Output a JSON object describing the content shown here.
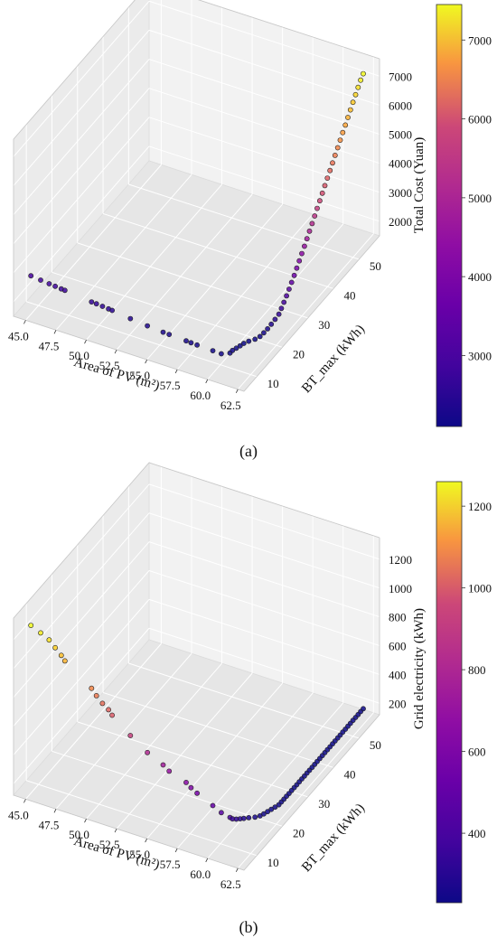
{
  "chart_data": [
    {
      "type": "scatter3d",
      "caption": "(a)",
      "xlabel": "Area of PV (m²)",
      "ylabel": "BT_max (kWh)",
      "zlabel": "Total Cost (Yuan)",
      "x_ticks": [
        "45.0",
        "47.5",
        "50.0",
        "52.5",
        "55.0",
        "57.5",
        "60.0",
        "62.5"
      ],
      "y_ticks": [
        "10",
        "20",
        "30",
        "40",
        "50"
      ],
      "z_ticks": [
        "2000",
        "3000",
        "4000",
        "5000",
        "6000",
        "7000"
      ],
      "xlim": [
        44,
        63
      ],
      "ylim": [
        5,
        58
      ],
      "zlim": [
        1500,
        7600
      ],
      "colormap": "plasma",
      "colorbar_ticks": [
        "3000",
        "4000",
        "5000",
        "6000",
        "7000"
      ],
      "colorbar_range": [
        2100,
        7450
      ],
      "grid": true,
      "points": [
        {
          "x": 44.8,
          "y": 8,
          "z": 2700
        },
        {
          "x": 45.6,
          "y": 8,
          "z": 2660
        },
        {
          "x": 46.3,
          "y": 8,
          "z": 2630
        },
        {
          "x": 46.8,
          "y": 8,
          "z": 2610
        },
        {
          "x": 47.3,
          "y": 8,
          "z": 2590
        },
        {
          "x": 47.6,
          "y": 8,
          "z": 2580
        },
        {
          "x": 49.8,
          "y": 8,
          "z": 2480
        },
        {
          "x": 50.2,
          "y": 8,
          "z": 2470
        },
        {
          "x": 50.7,
          "y": 8,
          "z": 2450
        },
        {
          "x": 51.2,
          "y": 8,
          "z": 2430
        },
        {
          "x": 51.5,
          "y": 8,
          "z": 2420
        },
        {
          "x": 53.0,
          "y": 8,
          "z": 2340
        },
        {
          "x": 54.4,
          "y": 8,
          "z": 2280
        },
        {
          "x": 55.7,
          "y": 8,
          "z": 2240
        },
        {
          "x": 56.2,
          "y": 8,
          "z": 2230
        },
        {
          "x": 57.6,
          "y": 8,
          "z": 2200
        },
        {
          "x": 58.0,
          "y": 8,
          "z": 2190
        },
        {
          "x": 58.5,
          "y": 8,
          "z": 2180
        },
        {
          "x": 59.8,
          "y": 8,
          "z": 2160
        },
        {
          "x": 60.5,
          "y": 8,
          "z": 2150
        },
        {
          "x": 61.0,
          "y": 9,
          "z": 2140
        },
        {
          "x": 61.0,
          "y": 10,
          "z": 2130
        },
        {
          "x": 61.1,
          "y": 11,
          "z": 2120
        },
        {
          "x": 61.2,
          "y": 12,
          "z": 2115
        },
        {
          "x": 61.3,
          "y": 13,
          "z": 2110
        },
        {
          "x": 61.5,
          "y": 14,
          "z": 2110
        },
        {
          "x": 61.8,
          "y": 15,
          "z": 2120
        },
        {
          "x": 62.0,
          "y": 16,
          "z": 2140
        },
        {
          "x": 62.1,
          "y": 17,
          "z": 2180
        },
        {
          "x": 62.2,
          "y": 18,
          "z": 2230
        },
        {
          "x": 62.3,
          "y": 19,
          "z": 2300
        },
        {
          "x": 62.4,
          "y": 20,
          "z": 2380
        },
        {
          "x": 62.5,
          "y": 21,
          "z": 2470
        },
        {
          "x": 62.5,
          "y": 22,
          "z": 2570
        },
        {
          "x": 62.5,
          "y": 23,
          "z": 2680
        },
        {
          "x": 62.5,
          "y": 24,
          "z": 2800
        },
        {
          "x": 62.5,
          "y": 25,
          "z": 2930
        },
        {
          "x": 62.5,
          "y": 26,
          "z": 3060
        },
        {
          "x": 62.5,
          "y": 27,
          "z": 3200
        },
        {
          "x": 62.5,
          "y": 28,
          "z": 3350
        },
        {
          "x": 62.5,
          "y": 29,
          "z": 3500
        },
        {
          "x": 62.5,
          "y": 30,
          "z": 3650
        },
        {
          "x": 62.5,
          "y": 31,
          "z": 3800
        },
        {
          "x": 62.5,
          "y": 32,
          "z": 3960
        },
        {
          "x": 62.5,
          "y": 33,
          "z": 4120
        },
        {
          "x": 62.5,
          "y": 34,
          "z": 4280
        },
        {
          "x": 62.5,
          "y": 35,
          "z": 4440
        },
        {
          "x": 62.5,
          "y": 36,
          "z": 4600
        },
        {
          "x": 62.5,
          "y": 37,
          "z": 4760
        },
        {
          "x": 62.5,
          "y": 38,
          "z": 4920
        },
        {
          "x": 62.5,
          "y": 39,
          "z": 5080
        },
        {
          "x": 62.5,
          "y": 40,
          "z": 5240
        },
        {
          "x": 62.5,
          "y": 41,
          "z": 5400
        },
        {
          "x": 62.5,
          "y": 42,
          "z": 5560
        },
        {
          "x": 62.5,
          "y": 43,
          "z": 5720
        },
        {
          "x": 62.5,
          "y": 44,
          "z": 5880
        },
        {
          "x": 62.5,
          "y": 45,
          "z": 6040
        },
        {
          "x": 62.5,
          "y": 46,
          "z": 6200
        },
        {
          "x": 62.5,
          "y": 47,
          "z": 6360
        },
        {
          "x": 62.5,
          "y": 48,
          "z": 6520
        },
        {
          "x": 62.5,
          "y": 49,
          "z": 6680
        },
        {
          "x": 62.5,
          "y": 50,
          "z": 6840
        },
        {
          "x": 62.5,
          "y": 51,
          "z": 7000
        },
        {
          "x": 62.5,
          "y": 52,
          "z": 7150
        },
        {
          "x": 62.5,
          "y": 53,
          "z": 7300
        },
        {
          "x": 62.5,
          "y": 54,
          "z": 7420
        }
      ]
    },
    {
      "type": "scatter3d",
      "caption": "(b)",
      "xlabel": "Area of PV (m²)",
      "ylabel": "BT_max (kWh)",
      "zlabel": "Grid electricity (kWh)",
      "x_ticks": [
        "45.0",
        "47.5",
        "50.0",
        "52.5",
        "55.0",
        "57.5",
        "60.0",
        "62.5"
      ],
      "y_ticks": [
        "10",
        "20",
        "30",
        "40",
        "50"
      ],
      "z_ticks": [
        "200",
        "400",
        "600",
        "800",
        "1000",
        "1200"
      ],
      "xlim": [
        44,
        63
      ],
      "ylim": [
        5,
        58
      ],
      "zlim": [
        120,
        1350
      ],
      "colormap": "plasma",
      "colorbar_ticks": [
        "400",
        "600",
        "800",
        "1000",
        "1200"
      ],
      "colorbar_range": [
        230,
        1260
      ],
      "grid": true,
      "points": [
        {
          "x": 44.8,
          "y": 8,
          "z": 1260
        },
        {
          "x": 45.6,
          "y": 8,
          "z": 1230
        },
        {
          "x": 46.3,
          "y": 8,
          "z": 1200
        },
        {
          "x": 46.8,
          "y": 8,
          "z": 1160
        },
        {
          "x": 47.3,
          "y": 8,
          "z": 1120
        },
        {
          "x": 47.6,
          "y": 8,
          "z": 1090
        },
        {
          "x": 49.8,
          "y": 8,
          "z": 960
        },
        {
          "x": 50.2,
          "y": 8,
          "z": 920
        },
        {
          "x": 50.7,
          "y": 8,
          "z": 880
        },
        {
          "x": 51.2,
          "y": 8,
          "z": 850
        },
        {
          "x": 51.5,
          "y": 8,
          "z": 820
        },
        {
          "x": 53.0,
          "y": 8,
          "z": 720
        },
        {
          "x": 54.4,
          "y": 8,
          "z": 640
        },
        {
          "x": 55.7,
          "y": 8,
          "z": 590
        },
        {
          "x": 56.2,
          "y": 8,
          "z": 560
        },
        {
          "x": 57.6,
          "y": 8,
          "z": 520
        },
        {
          "x": 58.0,
          "y": 8,
          "z": 495
        },
        {
          "x": 58.5,
          "y": 8,
          "z": 470
        },
        {
          "x": 59.8,
          "y": 8,
          "z": 420
        },
        {
          "x": 60.5,
          "y": 8,
          "z": 390
        },
        {
          "x": 61.0,
          "y": 9,
          "z": 350
        },
        {
          "x": 61.0,
          "y": 10,
          "z": 320
        },
        {
          "x": 61.1,
          "y": 11,
          "z": 300
        },
        {
          "x": 61.2,
          "y": 12,
          "z": 285
        },
        {
          "x": 61.3,
          "y": 13,
          "z": 270
        },
        {
          "x": 61.5,
          "y": 14,
          "z": 260
        },
        {
          "x": 61.8,
          "y": 15,
          "z": 252
        },
        {
          "x": 62.0,
          "y": 16,
          "z": 246
        },
        {
          "x": 62.1,
          "y": 17,
          "z": 242
        },
        {
          "x": 62.2,
          "y": 18,
          "z": 240
        },
        {
          "x": 62.3,
          "y": 19,
          "z": 238
        },
        {
          "x": 62.4,
          "y": 20,
          "z": 236
        },
        {
          "x": 62.5,
          "y": 21,
          "z": 235
        },
        {
          "x": 62.5,
          "y": 22,
          "z": 234
        },
        {
          "x": 62.5,
          "y": 23,
          "z": 233
        },
        {
          "x": 62.5,
          "y": 24,
          "z": 233
        },
        {
          "x": 62.5,
          "y": 25,
          "z": 232
        },
        {
          "x": 62.5,
          "y": 26,
          "z": 232
        },
        {
          "x": 62.5,
          "y": 27,
          "z": 232
        },
        {
          "x": 62.5,
          "y": 28,
          "z": 231
        },
        {
          "x": 62.5,
          "y": 29,
          "z": 231
        },
        {
          "x": 62.5,
          "y": 30,
          "z": 231
        },
        {
          "x": 62.5,
          "y": 31,
          "z": 231
        },
        {
          "x": 62.5,
          "y": 32,
          "z": 231
        },
        {
          "x": 62.5,
          "y": 33,
          "z": 230
        },
        {
          "x": 62.5,
          "y": 34,
          "z": 230
        },
        {
          "x": 62.5,
          "y": 35,
          "z": 230
        },
        {
          "x": 62.5,
          "y": 36,
          "z": 230
        },
        {
          "x": 62.5,
          "y": 37,
          "z": 230
        },
        {
          "x": 62.5,
          "y": 38,
          "z": 230
        },
        {
          "x": 62.5,
          "y": 39,
          "z": 230
        },
        {
          "x": 62.5,
          "y": 40,
          "z": 230
        },
        {
          "x": 62.5,
          "y": 41,
          "z": 230
        },
        {
          "x": 62.5,
          "y": 42,
          "z": 230
        },
        {
          "x": 62.5,
          "y": 43,
          "z": 230
        },
        {
          "x": 62.5,
          "y": 44,
          "z": 230
        },
        {
          "x": 62.5,
          "y": 45,
          "z": 230
        },
        {
          "x": 62.5,
          "y": 46,
          "z": 230
        },
        {
          "x": 62.5,
          "y": 47,
          "z": 230
        },
        {
          "x": 62.5,
          "y": 48,
          "z": 230
        },
        {
          "x": 62.5,
          "y": 49,
          "z": 230
        },
        {
          "x": 62.5,
          "y": 50,
          "z": 230
        },
        {
          "x": 62.5,
          "y": 51,
          "z": 230
        },
        {
          "x": 62.5,
          "y": 52,
          "z": 230
        },
        {
          "x": 62.5,
          "y": 53,
          "z": 230
        },
        {
          "x": 62.5,
          "y": 54,
          "z": 230
        }
      ]
    }
  ]
}
